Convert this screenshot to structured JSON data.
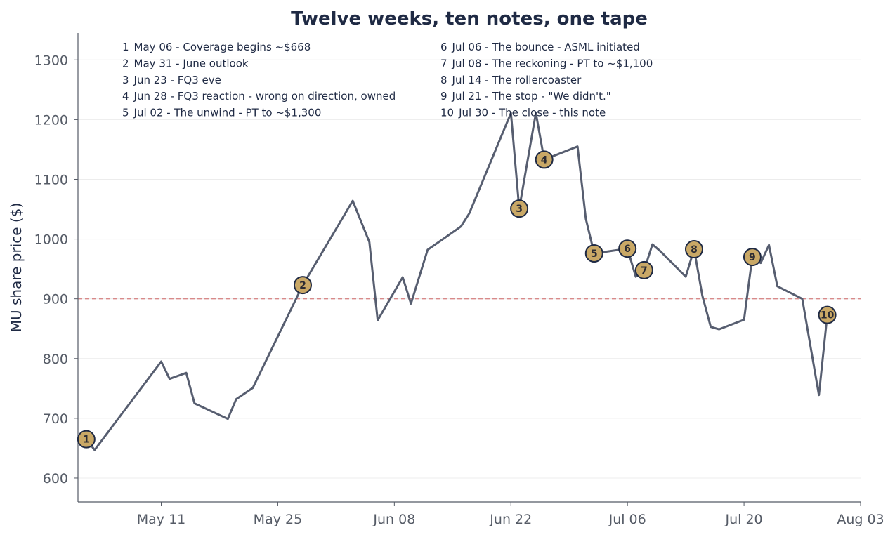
{
  "chart_data": {
    "type": "line",
    "title": "Twelve weeks, ten notes, one tape",
    "xlabel": "",
    "ylabel": "MU share price ($)",
    "xlim": [
      "2025-05-01",
      "2025-08-03"
    ],
    "ylim": [
      560,
      1345
    ],
    "x_ticks": [
      "2025-05-11",
      "2025-05-25",
      "2025-06-08",
      "2025-06-22",
      "2025-07-06",
      "2025-07-20",
      "2025-08-03"
    ],
    "x_tick_labels": [
      "May 11",
      "May 25",
      "Jun 08",
      "Jun 22",
      "Jul 06",
      "Jul 20",
      "Aug 03"
    ],
    "y_ticks": [
      600,
      700,
      800,
      900,
      1000,
      1100,
      1200,
      1300
    ],
    "grid": "horizontal",
    "reference_line": {
      "y": 900,
      "style": "dashed",
      "color": "#d88a8a"
    },
    "line_color": "#575e70",
    "marker_fill": "#c9a866",
    "marker_stroke": "#1f2a44",
    "series": [
      {
        "points": [
          {
            "x": "2025-05-02",
            "y": 665
          },
          {
            "x": "2025-05-03",
            "y": 647
          },
          {
            "x": "2025-05-11",
            "y": 795
          },
          {
            "x": "2025-05-12",
            "y": 766
          },
          {
            "x": "2025-05-14",
            "y": 776
          },
          {
            "x": "2025-05-15",
            "y": 725
          },
          {
            "x": "2025-05-19",
            "y": 699
          },
          {
            "x": "2025-05-20",
            "y": 732
          },
          {
            "x": "2025-05-22",
            "y": 751
          },
          {
            "x": "2025-05-28",
            "y": 923
          },
          {
            "x": "2025-06-03",
            "y": 1064
          },
          {
            "x": "2025-06-05",
            "y": 995
          },
          {
            "x": "2025-06-06",
            "y": 864
          },
          {
            "x": "2025-06-09",
            "y": 936
          },
          {
            "x": "2025-06-10",
            "y": 892
          },
          {
            "x": "2025-06-12",
            "y": 982
          },
          {
            "x": "2025-06-16",
            "y": 1021
          },
          {
            "x": "2025-06-17",
            "y": 1043
          },
          {
            "x": "2025-06-22",
            "y": 1211
          },
          {
            "x": "2025-06-23",
            "y": 1051
          },
          {
            "x": "2025-06-25",
            "y": 1211
          },
          {
            "x": "2025-06-26",
            "y": 1133
          },
          {
            "x": "2025-06-30",
            "y": 1155
          },
          {
            "x": "2025-07-01",
            "y": 1034
          },
          {
            "x": "2025-07-02",
            "y": 976
          },
          {
            "x": "2025-07-06",
            "y": 984
          },
          {
            "x": "2025-07-07",
            "y": 937
          },
          {
            "x": "2025-07-08",
            "y": 948
          },
          {
            "x": "2025-07-09",
            "y": 991
          },
          {
            "x": "2025-07-10",
            "y": 979
          },
          {
            "x": "2025-07-13",
            "y": 937
          },
          {
            "x": "2025-07-14",
            "y": 983
          },
          {
            "x": "2025-07-15",
            "y": 905
          },
          {
            "x": "2025-07-16",
            "y": 853
          },
          {
            "x": "2025-07-17",
            "y": 849
          },
          {
            "x": "2025-07-20",
            "y": 865
          },
          {
            "x": "2025-07-21",
            "y": 970
          },
          {
            "x": "2025-07-22",
            "y": 960
          },
          {
            "x": "2025-07-23",
            "y": 990
          },
          {
            "x": "2025-07-24",
            "y": 921
          },
          {
            "x": "2025-07-27",
            "y": 900
          },
          {
            "x": "2025-07-29",
            "y": 739
          },
          {
            "x": "2025-07-30",
            "y": 873
          }
        ]
      }
    ],
    "annotations": [
      {
        "n": "1",
        "x": "2025-05-02",
        "y": 665,
        "text": "May 06 - Coverage begins ~$668"
      },
      {
        "n": "2",
        "x": "2025-05-28",
        "y": 923,
        "text": "May 31 - June outlook"
      },
      {
        "n": "3",
        "x": "2025-06-23",
        "y": 1051,
        "text": "Jun 23 - FQ3 eve"
      },
      {
        "n": "4",
        "x": "2025-06-26",
        "y": 1133,
        "text": "Jun 28 - FQ3 reaction - wrong on direction, owned"
      },
      {
        "n": "5",
        "x": "2025-07-02",
        "y": 976,
        "text": "Jul 02 - The unwind - PT to ~$1,300"
      },
      {
        "n": "6",
        "x": "2025-07-06",
        "y": 984,
        "text": "Jul 06 - The bounce - ASML initiated"
      },
      {
        "n": "7",
        "x": "2025-07-08",
        "y": 948,
        "text": "Jul 08 - The reckoning - PT to ~$1,100"
      },
      {
        "n": "8",
        "x": "2025-07-14",
        "y": 983,
        "text": "Jul 14 - The rollercoaster"
      },
      {
        "n": "9",
        "x": "2025-07-21",
        "y": 970,
        "text": "Jul 21 - The stop - \"We didn't.\""
      },
      {
        "n": "10",
        "x": "2025-07-30",
        "y": 873,
        "text": "Jul 30 - The close - this note"
      }
    ]
  }
}
